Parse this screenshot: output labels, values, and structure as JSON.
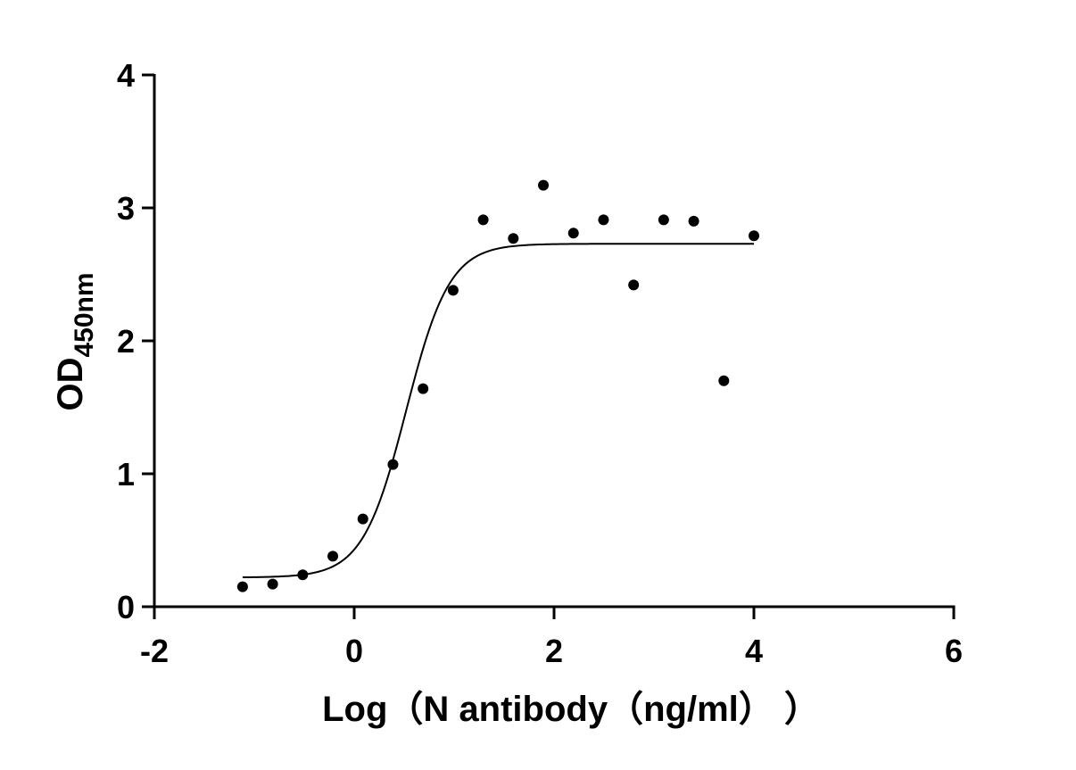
{
  "chart_data": {
    "type": "scatter",
    "xlabel": "Log（N antibody（ng/ml）  ）",
    "ylabel": "OD",
    "ylabel_sub": "450nm",
    "x": [
      -1.117,
      -0.816,
      -0.515,
      -0.214,
      0.087,
      0.388,
      0.689,
      0.99,
      1.291,
      1.592,
      1.893,
      2.194,
      2.495,
      2.796,
      3.097,
      3.398,
      3.699,
      4.0
    ],
    "values": [
      0.15,
      0.17,
      0.24,
      0.38,
      0.66,
      1.07,
      1.64,
      2.38,
      2.91,
      2.77,
      3.17,
      2.81,
      2.91,
      2.42,
      2.91,
      2.9,
      1.7,
      2.79
    ],
    "color": "#000000",
    "fit": {
      "bottom": 0.22,
      "top": 2.73,
      "logec50": 0.52,
      "hill": 2.0
    },
    "xlim": [
      -2,
      6
    ],
    "xticks": [
      -2,
      0,
      2,
      4,
      6
    ],
    "ylim": [
      0,
      4
    ],
    "yticks": [
      0,
      1,
      2,
      3,
      4
    ]
  }
}
